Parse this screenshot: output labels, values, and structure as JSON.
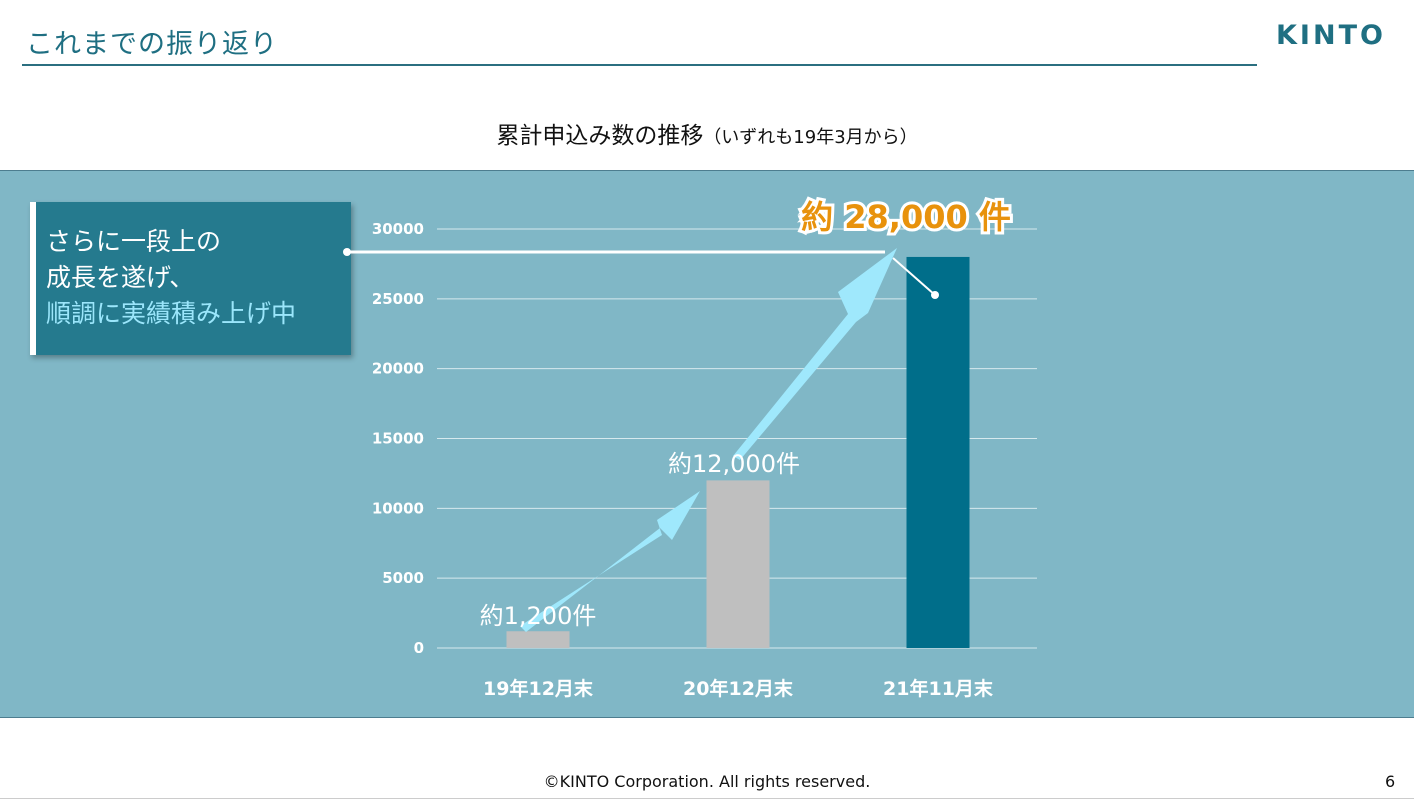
{
  "header": {
    "title": "これまでの振り返り",
    "logo": "KINTO"
  },
  "chart_title": {
    "main": "累計申込み数の推移",
    "sub": "（いずれも19年3月から）"
  },
  "callout": {
    "line1": "さらに一段上の",
    "line2": "成長を遂げ、",
    "line3": "順調に実績積み上げ中"
  },
  "chart_data": {
    "type": "bar",
    "title": "累計申込み数の推移（いずれも19年3月から）",
    "categories": [
      "19年12月末",
      "20年12月末",
      "21年11月末"
    ],
    "values": [
      1200,
      12000,
      28000
    ],
    "data_labels": [
      "約1,200件",
      "約12,000件",
      "約 28,000 件"
    ],
    "colors": [
      "#bfbfbf",
      "#bfbfbf",
      "#006e8a"
    ],
    "ylim": [
      0,
      30000
    ],
    "yticks": [
      "0",
      "5000",
      "10000",
      "15000",
      "20000",
      "25000",
      "30000"
    ],
    "grid": true,
    "xlabel": "",
    "ylabel": ""
  },
  "footer": {
    "copyright": "©KINTO Corporation. All rights reserved.",
    "page": "6"
  }
}
